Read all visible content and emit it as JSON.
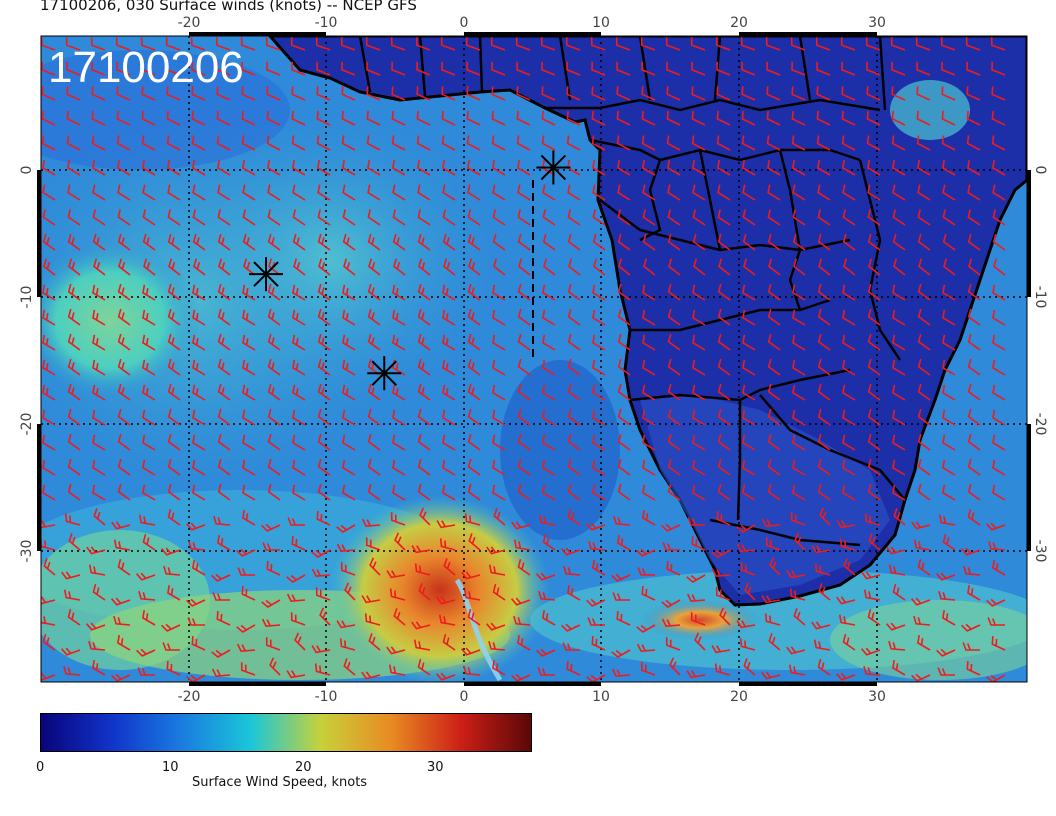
{
  "header": {
    "title": "17100206, 030 Surface winds (knots) -- NCEP GFS"
  },
  "map": {
    "date_stamp": "17100206",
    "lon_ticks": [
      "-20",
      "-10",
      "0",
      "10",
      "20",
      "30"
    ],
    "lat_ticks": [
      "0",
      "-10",
      "-20",
      "-30"
    ],
    "barb_color": "#ee1c1c",
    "coast_color": "#000000",
    "markers": [
      {
        "name": "asterisk-marker-1",
        "lon": 6.5,
        "lat": 0.2
      },
      {
        "name": "asterisk-marker-2",
        "lon": -14.4,
        "lat": -8.2
      },
      {
        "name": "asterisk-marker-3",
        "lon": -5.8,
        "lat": -16.0
      }
    ]
  },
  "colorbar": {
    "title": "Surface Wind Speed, knots",
    "ticks": [
      "0",
      "10",
      "20",
      "30"
    ],
    "colors": [
      "#08047a",
      "#1133c9",
      "#1a7be0",
      "#1bc6d8",
      "#c7d13a",
      "#e88b23",
      "#cc1f16",
      "#5a0808"
    ]
  }
}
